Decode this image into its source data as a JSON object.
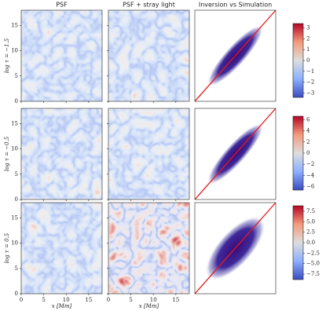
{
  "chart_data": {
    "type": "heatmap",
    "columns": [
      "PSF",
      "PSF + stray light",
      "Inversion vs Simulation"
    ],
    "xlabel": "x [Mm]",
    "xlim": [
      0,
      18
    ],
    "ylim": [
      0,
      18
    ],
    "xticks": [
      0,
      5,
      10,
      15
    ],
    "yticks": [
      0,
      5,
      10,
      15
    ],
    "rows": [
      {
        "label": "log τ = −1.5",
        "clim": [
          -3.4,
          3.4
        ],
        "cticks": [
          {
            "value": -3,
            "label": "−3"
          },
          {
            "value": -2,
            "label": "−2"
          },
          {
            "value": -1,
            "label": "−1"
          },
          0,
          1,
          2,
          3
        ]
      },
      {
        "label": "log τ = −0.5",
        "clim": [
          -6.6,
          6.6
        ],
        "cticks": [
          {
            "value": -6,
            "label": "−6"
          },
          {
            "value": -4,
            "label": "−4"
          },
          {
            "value": -2,
            "label": "−2"
          },
          0,
          2,
          4,
          6
        ]
      },
      {
        "label": "log τ = 0.5",
        "clim": [
          -8.8,
          8.8
        ],
        "cticks": [
          {
            "value": -7.5,
            "label": "−7.5"
          },
          {
            "value": -5,
            "label": "−5.0"
          },
          {
            "value": -2.5,
            "label": "−2.5"
          },
          {
            "value": 0,
            "label": "0.0"
          },
          2.5,
          {
            "value": 5,
            "label": "5.0"
          },
          7.5
        ]
      }
    ]
  }
}
